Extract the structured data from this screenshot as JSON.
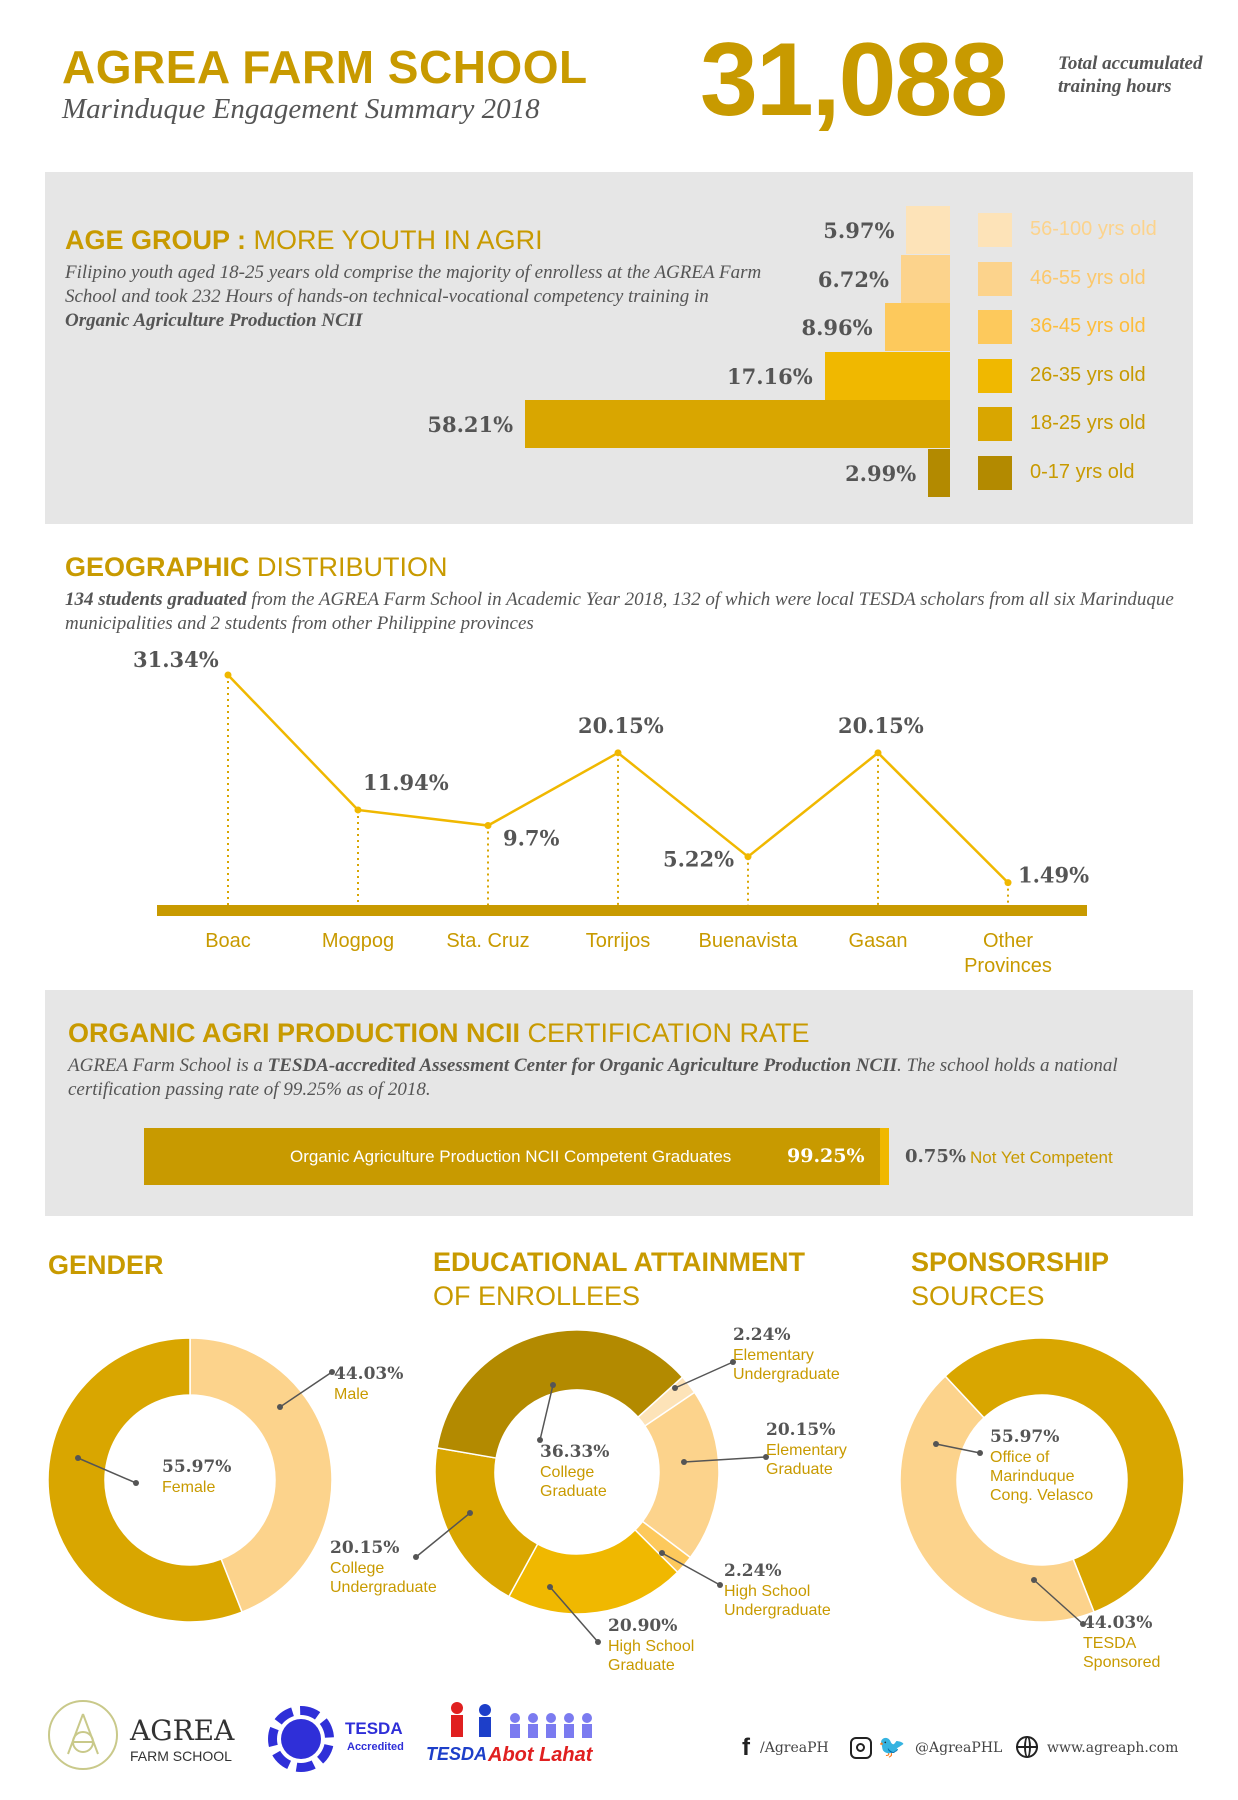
{
  "header": {
    "title": "AGREA FARM SCHOOL",
    "subtitle": "Marinduque Engagement Summary 2018",
    "big_number": "31,088",
    "big_number_label": "Total accumulated training hours"
  },
  "age": {
    "title_bold": "AGE GROUP :",
    "title_rest": " MORE YOUTH IN AGRI",
    "desc_plain": "Filipino youth aged 18-25 years old comprise the majority of enrolless at the AGREA Farm School and took 232 Hours of hands-on technical-vocational competency training in ",
    "desc_bold": "Organic Agriculture Production NCII"
  },
  "geo": {
    "title_bold": "GEOGRAPHIC",
    "title_rest": " DISTRIBUTION",
    "desc_bold": "134 students graduated",
    "desc_plain": " from the AGREA Farm School in Academic Year 2018, 132 of which were local TESDA scholars from all six Marinduque municipalities and 2 students from other Philippine provinces"
  },
  "cert": {
    "title_bold": "ORGANIC AGRI PRODUCTION NCII",
    "title_rest": " CERTIFICATION RATE",
    "desc_1": "AGREA Farm School is a ",
    "desc_bold": "TESDA-accredited Assessment Center for Organic Agriculture Production NCII",
    "desc_2": ". The school holds a national certification passing rate of 99.25% as of 2018.",
    "bar_label": "Organic Agriculture Production NCII Competent Graduates",
    "bar_pct": "99.25%",
    "nyc_pct": "0.75%",
    "nyc_label": "Not Yet Competent"
  },
  "gender": {
    "title": "GENDER"
  },
  "edu": {
    "title_1": "EDUCATIONAL ATTAINMENT",
    "title_2": "OF ENROLLEES"
  },
  "spons": {
    "title_1": "SPONSORSHIP",
    "title_2": "SOURCES"
  },
  "footer": {
    "agrea_1": "AGREA",
    "agrea_2": "FARM SCHOOL",
    "tesda": "TESDA",
    "tesda_sub": "Accredited",
    "abot_1": "TESDA",
    "abot_2": "Abot Lahat",
    "fb": "/AgreaPH",
    "social": "@AgreaPHL",
    "web": "www.agreaph.com"
  },
  "colors": {
    "gold": "#c89a00",
    "gold_mid": "#f0b800",
    "light1": "#fde3b8",
    "light2": "#fcd38c",
    "light3": "#fdc95c",
    "dark": "#b38a00",
    "panel": "#e6e6e6"
  },
  "chart_data": [
    {
      "type": "bar",
      "orientation": "horizontal",
      "title": "AGE GROUP : MORE YOUTH IN AGRI",
      "categories": [
        "56-100 yrs old",
        "46-55 yrs old",
        "36-45 yrs old",
        "26-35 yrs old",
        "18-25 yrs old",
        "0-17 yrs old"
      ],
      "values": [
        5.97,
        6.72,
        8.96,
        17.16,
        58.21,
        2.99
      ],
      "labels": [
        "5.97%",
        "6.72%",
        "8.96%",
        "17.16%",
        "58.21%",
        "2.99%"
      ],
      "colors": [
        "#fde3b8",
        "#fcd38c",
        "#fdc95c",
        "#f0b800",
        "#d9a600",
        "#b38a00"
      ],
      "legend": "right"
    },
    {
      "type": "line",
      "title": "GEOGRAPHIC DISTRIBUTION",
      "categories": [
        "Boac",
        "Mogpog",
        "Sta. Cruz",
        "Torrijos",
        "Buenavista",
        "Gasan",
        "Other Provinces"
      ],
      "values": [
        31.34,
        11.94,
        9.7,
        20.15,
        5.22,
        20.15,
        1.49
      ],
      "labels": [
        "31.34%",
        "11.94%",
        "9.7%",
        "20.15%",
        "5.22%",
        "20.15%",
        "1.49%"
      ]
    },
    {
      "type": "bar",
      "orientation": "horizontal",
      "stacked": true,
      "title": "CERTIFICATION RATE",
      "categories": [
        "Competent",
        "Not Yet Competent"
      ],
      "values": [
        99.25,
        0.75
      ]
    },
    {
      "type": "pie",
      "title": "GENDER",
      "slices": [
        {
          "label": "Male",
          "value": 44.03,
          "pct": "44.03%",
          "color": "#fcd38c"
        },
        {
          "label": "Female",
          "value": 55.97,
          "pct": "55.97%",
          "color": "#d9a600"
        }
      ]
    },
    {
      "type": "pie",
      "title": "EDUCATIONAL ATTAINMENT OF ENROLLEES",
      "slices": [
        {
          "label": "Elementary Undergraduate",
          "value": 2.24,
          "pct": "2.24%",
          "color": "#fde3b8"
        },
        {
          "label": "Elementary Graduate",
          "value": 20.15,
          "pct": "20.15%",
          "color": "#fcd38c"
        },
        {
          "label": "High School Undergraduate",
          "value": 2.24,
          "pct": "2.24%",
          "color": "#fdc95c"
        },
        {
          "label": "High School Graduate",
          "value": 20.9,
          "pct": "20.90%",
          "color": "#f0b800"
        },
        {
          "label": "College Undergraduate",
          "value": 20.15,
          "pct": "20.15%",
          "color": "#d9a600"
        },
        {
          "label": "College Graduate",
          "value": 36.33,
          "pct": "36.33%",
          "color": "#b38a00"
        }
      ]
    },
    {
      "type": "pie",
      "title": "SPONSORSHIP SOURCES",
      "slices": [
        {
          "label": "Office of Marinduque Cong. Velasco",
          "value": 55.97,
          "pct": "55.97%",
          "color": "#d9a600"
        },
        {
          "label": "TESDA Sponsored",
          "value": 44.03,
          "pct": "44.03%",
          "color": "#fcd38c"
        }
      ]
    }
  ]
}
